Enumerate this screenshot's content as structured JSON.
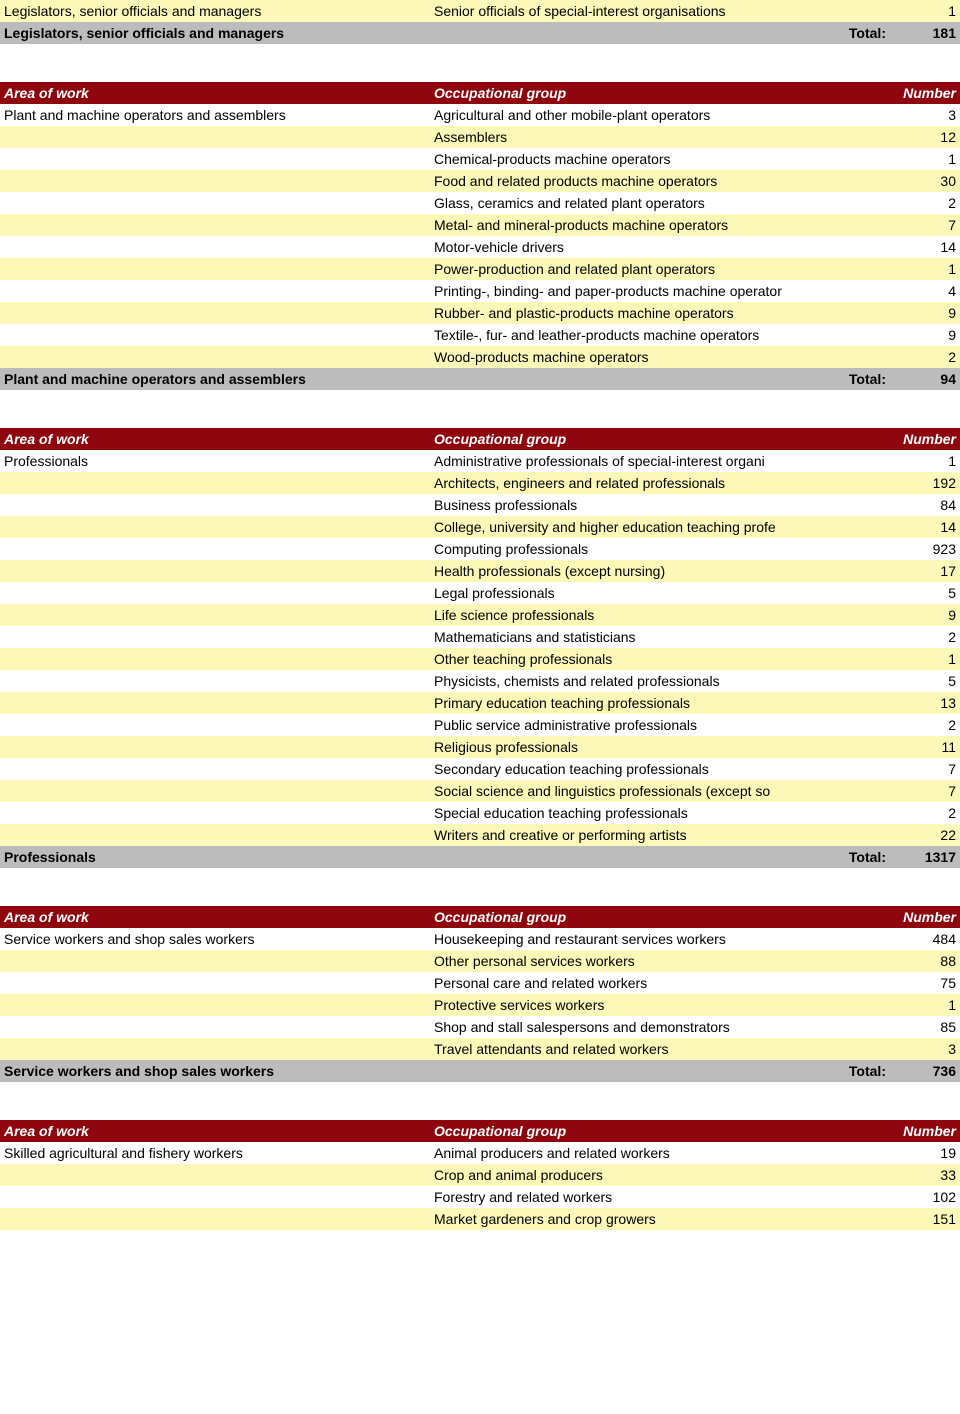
{
  "headers": {
    "area": "Area of work",
    "group": "Occupational group",
    "number": "Number"
  },
  "total_label": "Total:",
  "leading_fragment": {
    "area": "Legislators, senior officials and managers",
    "row": {
      "group": "Senior officials of special-interest organisations",
      "number": 1
    },
    "total_area": "Legislators, senior officials and managers",
    "total": 181
  },
  "sections": [
    {
      "area": "Plant and machine operators and assemblers",
      "rows": [
        {
          "group": "Agricultural and other mobile-plant operators",
          "number": 3
        },
        {
          "group": "Assemblers",
          "number": 12
        },
        {
          "group": "Chemical-products machine operators",
          "number": 1
        },
        {
          "group": "Food and related products machine operators",
          "number": 30
        },
        {
          "group": "Glass, ceramics and related plant operators",
          "number": 2
        },
        {
          "group": "Metal- and mineral-products machine operators",
          "number": 7
        },
        {
          "group": "Motor-vehicle drivers",
          "number": 14
        },
        {
          "group": "Power-production and related plant operators",
          "number": 1
        },
        {
          "group": "Printing-, binding- and paper-products machine operator",
          "number": 4
        },
        {
          "group": "Rubber- and plastic-products machine operators",
          "number": 9
        },
        {
          "group": "Textile-, fur- and leather-products machine operators",
          "number": 9
        },
        {
          "group": "Wood-products machine operators",
          "number": 2
        }
      ],
      "total_area": "Plant and machine operators and assemblers",
      "total": 94
    },
    {
      "area": "Professionals",
      "rows": [
        {
          "group": "Administrative professionals of special-interest organi",
          "number": 1
        },
        {
          "group": "Architects, engineers and related professionals",
          "number": 192
        },
        {
          "group": "Business professionals",
          "number": 84
        },
        {
          "group": "College, university and higher education teaching profe",
          "number": 14
        },
        {
          "group": "Computing professionals",
          "number": 923
        },
        {
          "group": "Health professionals (except nursing)",
          "number": 17
        },
        {
          "group": "Legal professionals",
          "number": 5
        },
        {
          "group": "Life science professionals",
          "number": 9
        },
        {
          "group": "Mathematicians and statisticians",
          "number": 2
        },
        {
          "group": "Other teaching professionals",
          "number": 1
        },
        {
          "group": "Physicists, chemists and related professionals",
          "number": 5
        },
        {
          "group": "Primary education teaching professionals",
          "number": 13
        },
        {
          "group": "Public service administrative professionals",
          "number": 2
        },
        {
          "group": "Religious professionals",
          "number": 11
        },
        {
          "group": "Secondary education teaching professionals",
          "number": 7
        },
        {
          "group": "Social science and linguistics professionals (except so",
          "number": 7
        },
        {
          "group": "Special education teaching professionals",
          "number": 2
        },
        {
          "group": "Writers and creative or performing artists",
          "number": 22
        }
      ],
      "total_area": "Professionals",
      "total": 1317
    },
    {
      "area": "Service workers and shop sales workers",
      "rows": [
        {
          "group": "Housekeeping and restaurant services workers",
          "number": 484
        },
        {
          "group": "Other personal services workers",
          "number": 88
        },
        {
          "group": "Personal care and related workers",
          "number": 75
        },
        {
          "group": "Protective services workers",
          "number": 1
        },
        {
          "group": "Shop and stall salespersons and demonstrators",
          "number": 85
        },
        {
          "group": "Travel attendants and related workers",
          "number": 3
        }
      ],
      "total_area": "Service workers and shop sales workers",
      "total": 736
    },
    {
      "area": "Skilled agricultural and fishery workers",
      "rows": [
        {
          "group": "Animal producers and related workers",
          "number": 19
        },
        {
          "group": "Crop and animal producers",
          "number": 33
        },
        {
          "group": "Forestry and related workers",
          "number": 102
        },
        {
          "group": "Market gardeners and crop growers",
          "number": 151
        }
      ],
      "total_area": null,
      "total": null
    }
  ],
  "colors": {
    "header_bg": "#8f050e",
    "header_fg": "#ffffff",
    "row_alt_bg": "#fbf8b8",
    "row_bg": "#ffffff",
    "total_bg": "#bcbcbc"
  }
}
